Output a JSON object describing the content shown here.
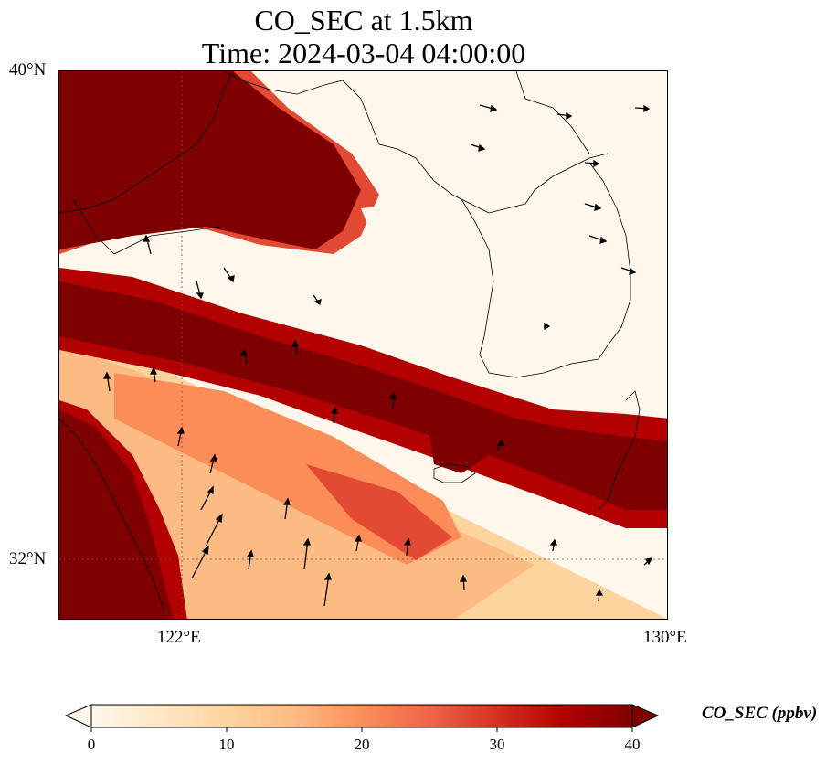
{
  "title": {
    "line1": "CO_SEC at 1.5km",
    "line2": "Time: 2024-03-04 04:00:00"
  },
  "axes": {
    "lat_ticks": [
      "40°N",
      "32°N"
    ],
    "lon_ticks": [
      "122°E",
      "130°E"
    ],
    "gridlines": "dotted"
  },
  "colorbar": {
    "label": "CO_SEC (ppbv)",
    "ticks": [
      "0",
      "10",
      "20",
      "30",
      "40"
    ],
    "min": 0,
    "max": 40,
    "extend": "both",
    "colormap": "OrRd",
    "stops": [
      "#fff7ec",
      "#fee8c8",
      "#fdd49e",
      "#fdbb84",
      "#fc8d59",
      "#ef6548",
      "#d7301f",
      "#b30000",
      "#7f0000"
    ]
  },
  "map_colors": {
    "max": "#7f0000",
    "high": "#b30000",
    "mid_high": "#e34a33",
    "mid": "#fc8d59",
    "mid_low": "#fdbb84",
    "low": "#fdd49e",
    "lowest": "#fff7ec",
    "coastline": "#000000"
  }
}
